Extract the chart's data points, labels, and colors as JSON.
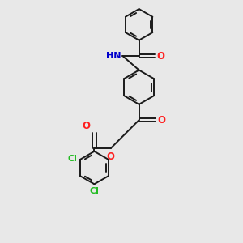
{
  "background_color": "#e8e8e8",
  "bond_color": "#1a1a1a",
  "N_color": "#0000cc",
  "O_color": "#ff2020",
  "Cl_color": "#22bb22",
  "line_width": 1.4,
  "figsize": [
    3.0,
    3.0
  ],
  "dpi": 100,
  "xlim": [
    -0.5,
    3.0
  ],
  "ylim": [
    -3.6,
    2.8
  ]
}
